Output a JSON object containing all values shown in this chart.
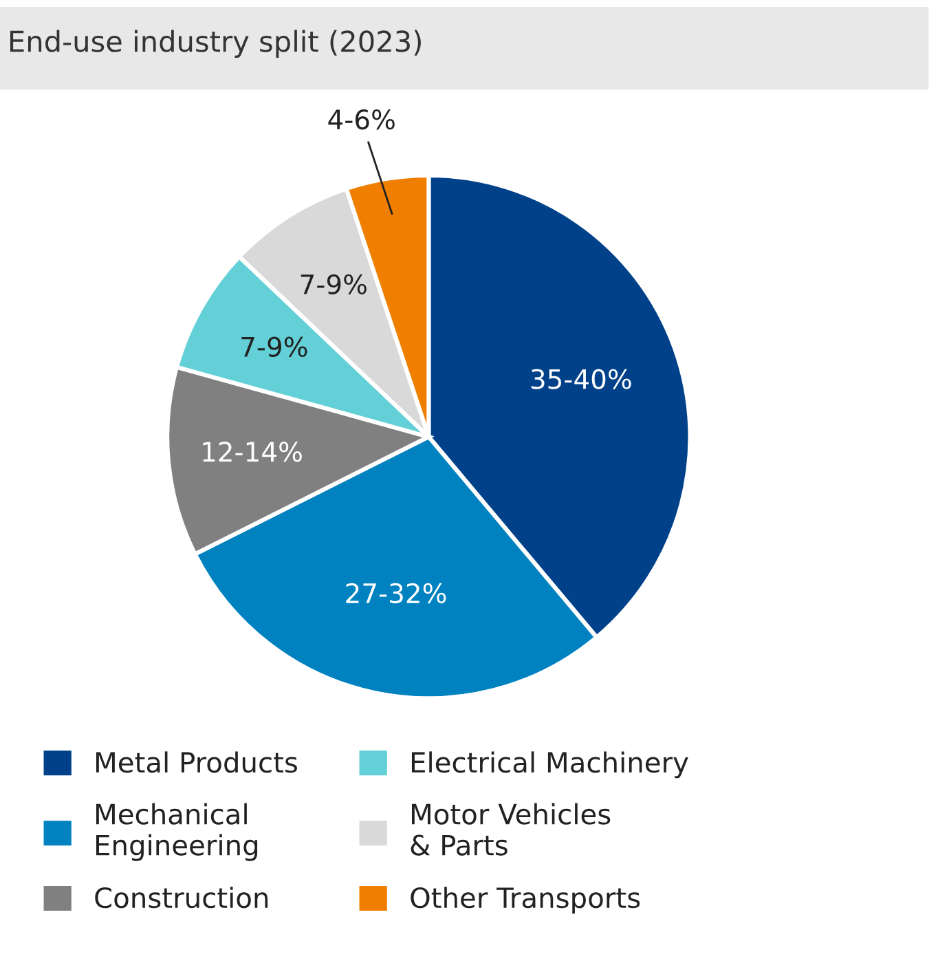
{
  "chart_data": {
    "type": "pie",
    "title": "End-use industry split (2023)",
    "categories": [
      "Metal Products",
      "Mechanical Engineering",
      "Construction",
      "Electrical Machinery",
      "Motor Vehicles & Parts",
      "Other Transports"
    ],
    "values": [
      38.9,
      28.7,
      11.7,
      7.8,
      7.8,
      5.1
    ],
    "annotations": [
      {
        "text": "35-40%",
        "x": "Metal Products"
      },
      {
        "text": "27-32%",
        "x": "Mechanical Engineering"
      },
      {
        "text": "12-14%",
        "x": "Construction"
      },
      {
        "text": "7-9%",
        "x": "Electrical Machinery"
      },
      {
        "text": "7-9%",
        "x": "Motor Vehicles & Parts"
      },
      {
        "text": "4-6%",
        "x": "Other Transports"
      }
    ],
    "colors": [
      "#00418a",
      "#0082c1",
      "#808080",
      "#62d0d6",
      "#d9d9d9",
      "#f07f00"
    ],
    "legend": "bottom"
  }
}
